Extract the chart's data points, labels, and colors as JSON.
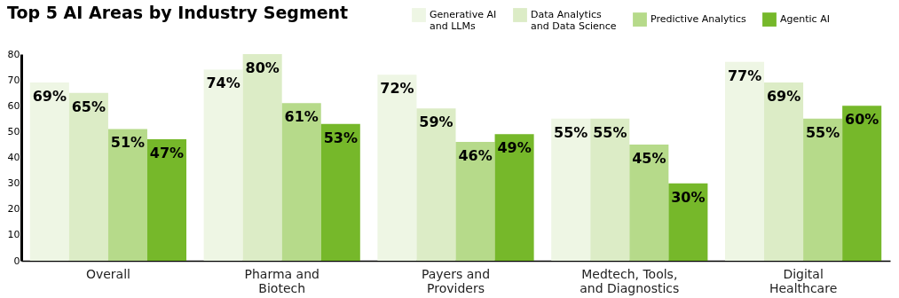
{
  "chart_data": {
    "type": "bar",
    "title": "Top 5 AI Areas by Industry Segment",
    "categories": [
      "Overall",
      "Pharma and\nBiotech",
      "Payers and\nProviders",
      "Medtech, Tools,\nand Diagnostics",
      "Digital\nHealthcare"
    ],
    "series": [
      {
        "name": "Generative AI\nand LLMs",
        "color": "#eef6e4",
        "values": [
          69,
          74,
          72,
          55,
          77
        ],
        "value_labels": [
          "69%",
          "74%",
          "72%",
          "55%",
          "77%"
        ]
      },
      {
        "name": "Data Analytics\nand Data Science",
        "color": "#dcecc6",
        "values": [
          65,
          80,
          59,
          55,
          69
        ],
        "value_labels": [
          "65%",
          "80%",
          "59%",
          "55%",
          "69%"
        ]
      },
      {
        "name": "Predictive Analytics",
        "color": "#b6da8a",
        "values": [
          51,
          61,
          46,
          45,
          55
        ],
        "value_labels": [
          "51%",
          "61%",
          "46%",
          "45%",
          "55%"
        ]
      },
      {
        "name": "Agentic AI",
        "color": "#76b82a",
        "values": [
          47,
          53,
          49,
          30,
          60
        ],
        "value_labels": [
          "47%",
          "53%",
          "49%",
          "30%",
          "60%"
        ]
      }
    ],
    "ylim": [
      0,
      80
    ],
    "yticks": [
      0,
      10,
      20,
      30,
      40,
      50,
      60,
      70,
      80
    ],
    "legend": "top right"
  }
}
